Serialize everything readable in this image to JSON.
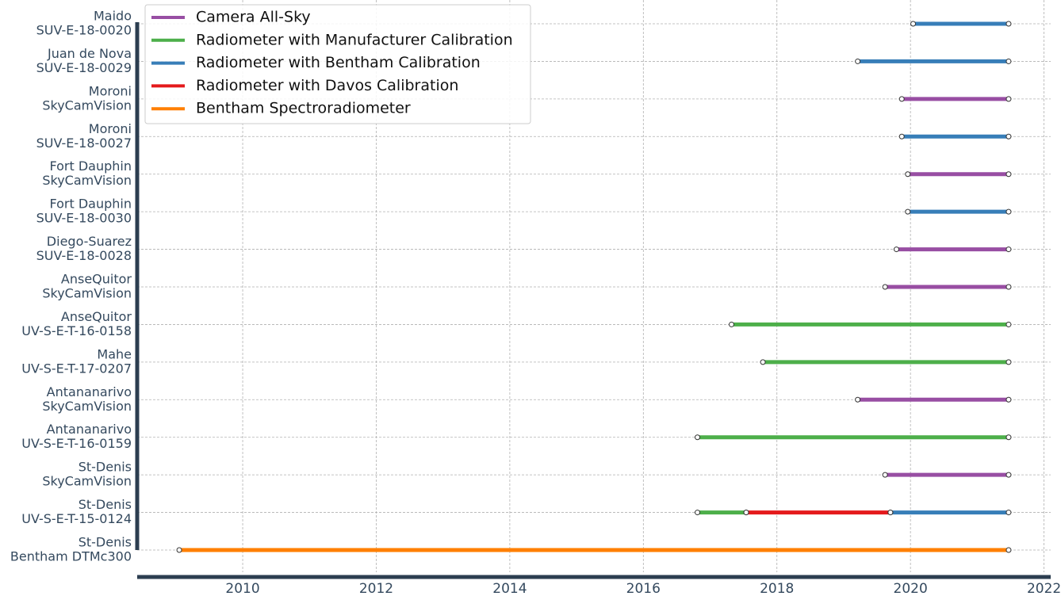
{
  "chart_data": {
    "type": "timeline",
    "categories": [
      [
        "Maido",
        "SUV-E-18-0020"
      ],
      [
        "Juan de Nova",
        "SUV-E-18-0029"
      ],
      [
        "Moroni",
        "SkyCamVision"
      ],
      [
        "Moroni",
        "SUV-E-18-0027"
      ],
      [
        "Fort Dauphin",
        "SkyCamVision"
      ],
      [
        "Fort Dauphin",
        "SUV-E-18-0030"
      ],
      [
        "Diego-Suarez",
        "SUV-E-18-0028"
      ],
      [
        "AnseQuitor",
        "SkyCamVision"
      ],
      [
        "AnseQuitor",
        "UV-S-E-T-16-0158"
      ],
      [
        "Mahe",
        "UV-S-E-T-17-0207"
      ],
      [
        "Antananarivo",
        "SkyCamVision"
      ],
      [
        "Antananarivo",
        "UV-S-E-T-16-0159"
      ],
      [
        "St-Denis",
        "SkyCamVision"
      ],
      [
        "St-Denis",
        "UV-S-E-T-15-0124"
      ],
      [
        "St-Denis",
        "Bentham DTMc300"
      ]
    ],
    "series": [
      {
        "name": "Camera All-Sky",
        "color": "#984ea3",
        "values": [
          null,
          null,
          [
            2019.87,
            2021.47
          ],
          null,
          [
            2019.96,
            2021.47
          ],
          null,
          [
            2019.79,
            2021.47
          ],
          [
            2019.62,
            2021.47
          ],
          null,
          null,
          [
            2019.21,
            2021.47
          ],
          null,
          [
            2019.62,
            2021.47
          ],
          null,
          null
        ]
      },
      {
        "name": "Radiometer with Manufacturer Calibration",
        "color": "#4daf4a",
        "values": [
          null,
          null,
          null,
          null,
          null,
          null,
          null,
          null,
          [
            2017.32,
            2021.47
          ],
          [
            2017.79,
            2021.47
          ],
          null,
          [
            2016.81,
            2021.47
          ],
          null,
          [
            2016.81,
            2017.54
          ],
          null
        ]
      },
      {
        "name": "Radiometer with Bentham Calibration",
        "color": "#377eb8",
        "values": [
          [
            2020.04,
            2021.47
          ],
          [
            2019.21,
            2021.47
          ],
          null,
          [
            2019.87,
            2021.47
          ],
          null,
          [
            2019.96,
            2021.47
          ],
          null,
          null,
          null,
          null,
          null,
          null,
          null,
          [
            2019.7,
            2021.47
          ],
          null
        ]
      },
      {
        "name": "Radiometer with Davos Calibration",
        "color": "#e41a1c",
        "values": [
          null,
          null,
          null,
          null,
          null,
          null,
          null,
          null,
          null,
          null,
          null,
          null,
          null,
          [
            2017.54,
            2019.7
          ],
          null
        ]
      },
      {
        "name": "Bentham Spectroradiometer",
        "color": "#ff7f00",
        "values": [
          null,
          null,
          null,
          null,
          null,
          null,
          null,
          null,
          null,
          null,
          null,
          null,
          null,
          null,
          [
            2009.05,
            2021.47
          ]
        ]
      }
    ],
    "xlim": [
      2008.42,
      2022.1
    ],
    "xticks": [
      2010,
      2012,
      2014,
      2016,
      2018,
      2020,
      2022
    ],
    "grid": true,
    "legend": "upper left"
  }
}
